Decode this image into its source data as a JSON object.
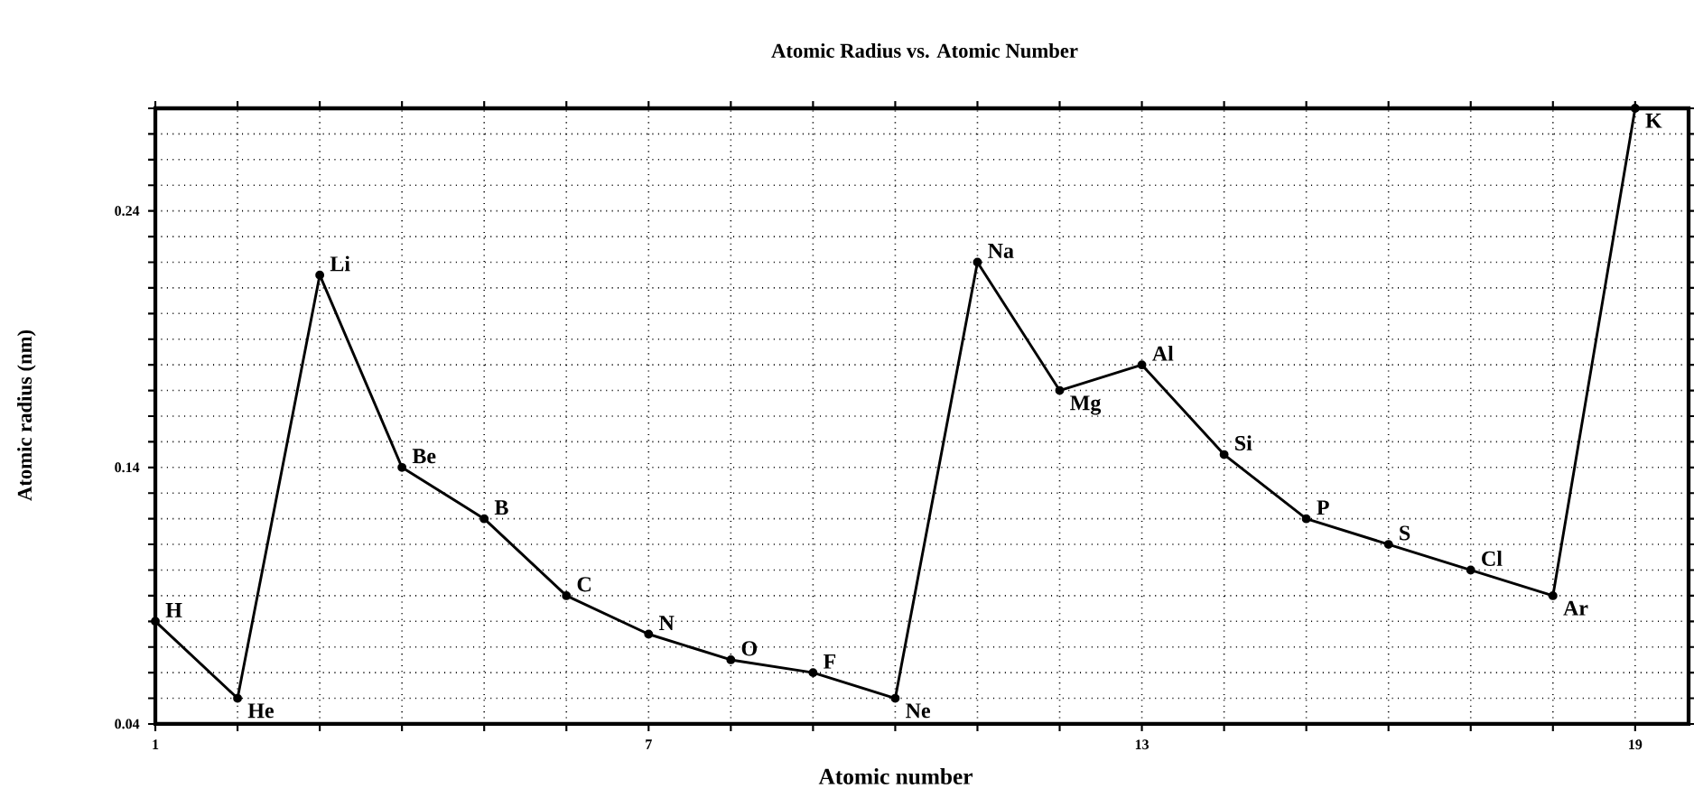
{
  "chart_data": {
    "type": "line",
    "title": "Atomic Radius vs. Atomic Number",
    "xlabel": "Atomic number",
    "ylabel": "Atomic radius (nm)",
    "x": [
      1,
      2,
      3,
      4,
      5,
      6,
      7,
      8,
      9,
      10,
      11,
      12,
      13,
      14,
      15,
      16,
      17,
      18,
      19
    ],
    "values": [
      0.08,
      0.05,
      0.215,
      0.14,
      0.12,
      0.09,
      0.075,
      0.065,
      0.06,
      0.05,
      0.22,
      0.17,
      0.18,
      0.145,
      0.12,
      0.11,
      0.1,
      0.09,
      0.28
    ],
    "color": "#000000",
    "marker": "circle",
    "line_style": "solid",
    "grid": true,
    "xlim": [
      1,
      19.65
    ],
    "ylim": [
      0.04,
      0.28
    ],
    "xticks": [
      1,
      {
        "value": 2,
        "label": null
      },
      {
        "value": 3,
        "label": null
      },
      {
        "value": 4,
        "label": null
      },
      {
        "value": 5,
        "label": null
      },
      {
        "value": 6,
        "label": null
      },
      7,
      {
        "value": 8,
        "label": null
      },
      {
        "value": 9,
        "label": null
      },
      {
        "value": 10,
        "label": null
      },
      {
        "value": 11,
        "label": null
      },
      {
        "value": 12,
        "label": null
      },
      13,
      {
        "value": 14,
        "label": null
      },
      {
        "value": 15,
        "label": null
      },
      {
        "value": 16,
        "label": null
      },
      {
        "value": 17,
        "label": null
      },
      {
        "value": 18,
        "label": null
      },
      19
    ],
    "yticks": [
      0.04,
      {
        "value": 0.05,
        "label": null
      },
      {
        "value": 0.06,
        "label": null
      },
      {
        "value": 0.07,
        "label": null
      },
      {
        "value": 0.08,
        "label": null
      },
      {
        "value": 0.09,
        "label": null
      },
      {
        "value": 0.1,
        "label": null
      },
      {
        "value": 0.11,
        "label": null
      },
      {
        "value": 0.12,
        "label": null
      },
      {
        "value": 0.13,
        "label": null
      },
      0.14,
      {
        "value": 0.15,
        "label": null
      },
      {
        "value": 0.16,
        "label": null
      },
      {
        "value": 0.17,
        "label": null
      },
      {
        "value": 0.18,
        "label": null
      },
      {
        "value": 0.19,
        "label": null
      },
      {
        "value": 0.2,
        "label": null
      },
      {
        "value": 0.21,
        "label": null
      },
      {
        "value": 0.22,
        "label": null
      },
      {
        "value": 0.23,
        "label": null
      },
      0.24,
      {
        "value": 0.25,
        "label": null
      },
      {
        "value": 0.26,
        "label": null
      },
      {
        "value": 0.27,
        "label": null
      },
      {
        "value": 0.28,
        "label": null
      }
    ],
    "annotations": [
      {
        "text": "H",
        "x": 1,
        "y": 0.08
      },
      {
        "text": "He",
        "x": 2,
        "y": 0.05
      },
      {
        "text": "Li",
        "x": 3,
        "y": 0.215
      },
      {
        "text": "Be",
        "x": 4,
        "y": 0.14
      },
      {
        "text": "B",
        "x": 5,
        "y": 0.12
      },
      {
        "text": "C",
        "x": 6,
        "y": 0.09
      },
      {
        "text": "N",
        "x": 7,
        "y": 0.075
      },
      {
        "text": "O",
        "x": 8,
        "y": 0.065
      },
      {
        "text": "F",
        "x": 9,
        "y": 0.06
      },
      {
        "text": "Ne",
        "x": 10,
        "y": 0.05
      },
      {
        "text": "Na",
        "x": 11,
        "y": 0.22
      },
      {
        "text": "Mg",
        "x": 12,
        "y": 0.17
      },
      {
        "text": "Al",
        "x": 13,
        "y": 0.18
      },
      {
        "text": "Si",
        "x": 14,
        "y": 0.145
      },
      {
        "text": "P",
        "x": 15,
        "y": 0.12
      },
      {
        "text": "S",
        "x": 16,
        "y": 0.11
      },
      {
        "text": "Cl",
        "x": 17,
        "y": 0.1
      },
      {
        "text": "Ar",
        "x": 18,
        "y": 0.09
      },
      {
        "text": "K",
        "x": 19,
        "y": 0.28
      }
    ]
  }
}
